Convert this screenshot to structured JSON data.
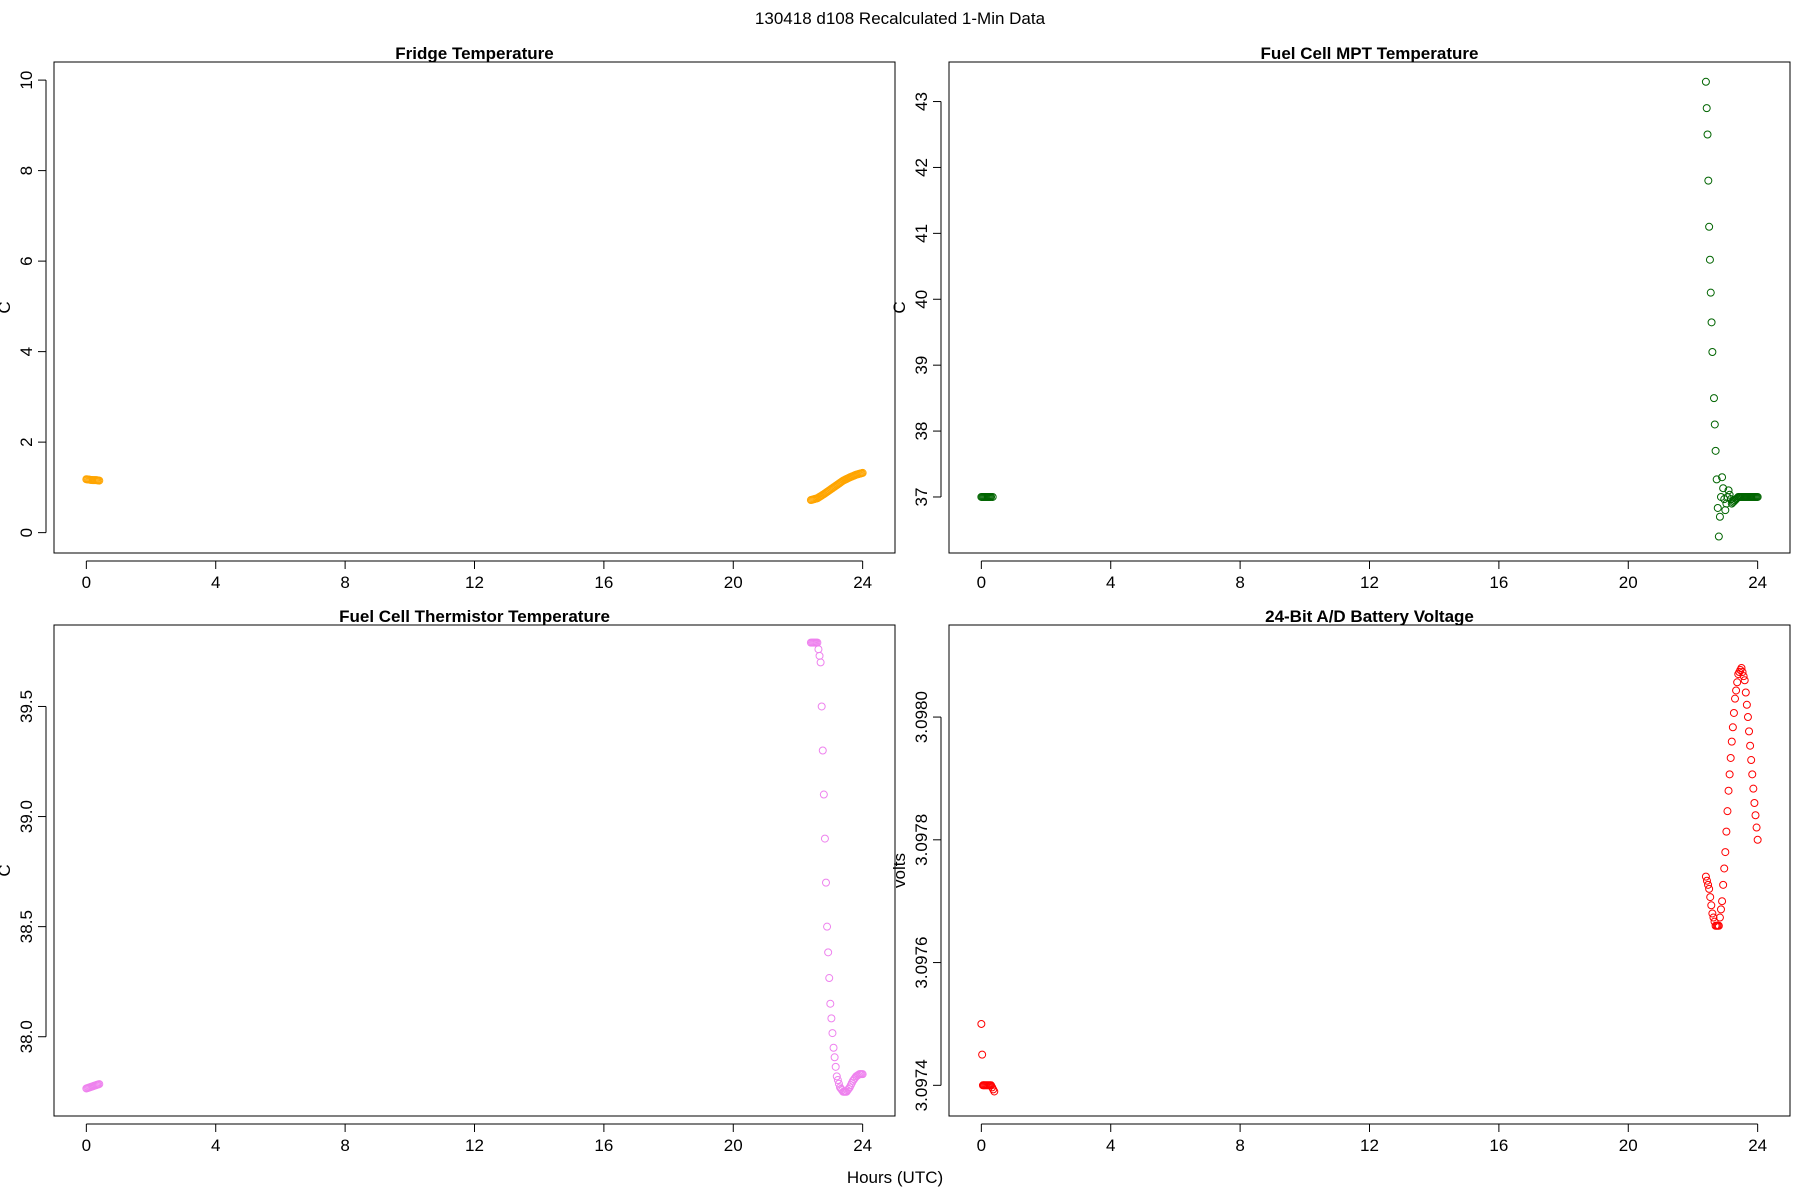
{
  "figure_title": "130418   d108   Recalculated 1-Min Data",
  "shared_xlabel": "Hours (UTC)",
  "chart_data": [
    {
      "type": "scatter",
      "title": "Fridge Temperature",
      "xlabel": "",
      "ylabel": "C",
      "xlim": [
        -1,
        25
      ],
      "ylim": [
        -0.45,
        10.4
      ],
      "xticks": [
        0,
        4,
        8,
        12,
        16,
        20,
        24
      ],
      "xtick_labels": [
        "0",
        "4",
        "8",
        "12",
        "16",
        "20",
        "24"
      ],
      "yticks": [
        0,
        2,
        4,
        6,
        8,
        10
      ],
      "ytick_labels": [
        "0",
        "2",
        "4",
        "6",
        "8",
        "10"
      ],
      "color": "#ffa500",
      "segments": [
        {
          "x": [
            0.0,
            0.1,
            0.2,
            0.3,
            0.4
          ],
          "y": [
            1.18,
            1.17,
            1.16,
            1.16,
            1.15
          ]
        },
        {
          "x": [
            22.4,
            22.6,
            22.8,
            23.0,
            23.2,
            23.4,
            23.6,
            23.8,
            24.0
          ],
          "y": [
            0.72,
            0.76,
            0.85,
            0.95,
            1.05,
            1.15,
            1.22,
            1.28,
            1.32
          ]
        }
      ]
    },
    {
      "type": "scatter",
      "title": "Fuel Cell MPT Temperature",
      "xlabel": "",
      "ylabel": "C",
      "xlim": [
        -1,
        25
      ],
      "ylim": [
        36.15,
        43.6
      ],
      "xticks": [
        0,
        4,
        8,
        12,
        16,
        20,
        24
      ],
      "xtick_labels": [
        "0",
        "4",
        "8",
        "12",
        "16",
        "20",
        "24"
      ],
      "yticks": [
        37,
        38,
        39,
        40,
        41,
        42,
        43
      ],
      "ytick_labels": [
        "37",
        "38",
        "39",
        "40",
        "41",
        "42",
        "43"
      ],
      "color": "#006400",
      "segments": [
        {
          "x": [
            0.0,
            0.1,
            0.2,
            0.3,
            0.35
          ],
          "y": [
            37.0,
            37.0,
            37.0,
            37.0,
            37.0
          ]
        },
        {
          "x": [
            22.4,
            22.45,
            22.5,
            22.55,
            22.6,
            22.65,
            22.7,
            22.8,
            22.9,
            23.0,
            23.1,
            23.2,
            23.4,
            23.6,
            23.8,
            24.0
          ],
          "y": [
            43.3,
            42.5,
            41.1,
            40.1,
            39.2,
            38.5,
            37.7,
            36.4,
            37.3,
            36.8,
            37.1,
            36.9,
            37.0,
            37.0,
            37.0,
            37.0
          ]
        }
      ]
    },
    {
      "type": "scatter",
      "title": "Fuel Cell Thermistor Temperature",
      "xlabel": "",
      "ylabel": "C",
      "xlim": [
        -1,
        25
      ],
      "ylim": [
        37.64,
        39.87
      ],
      "xticks": [
        0,
        4,
        8,
        12,
        16,
        20,
        24
      ],
      "xtick_labels": [
        "0",
        "4",
        "8",
        "12",
        "16",
        "20",
        "24"
      ],
      "yticks": [
        38.0,
        38.5,
        39.0,
        39.5
      ],
      "ytick_labels": [
        "38.0",
        "38.5",
        "39.0",
        "39.5"
      ],
      "color": "#ee82ee",
      "segments": [
        {
          "x": [
            0.0,
            0.1,
            0.2,
            0.3,
            0.4
          ],
          "y": [
            37.765,
            37.77,
            37.775,
            37.78,
            37.785
          ]
        },
        {
          "x": [
            22.4,
            22.5,
            22.6,
            22.7,
            22.8,
            22.9,
            23.0,
            23.1,
            23.2,
            23.3,
            23.4,
            23.5,
            23.6,
            23.7,
            23.8,
            23.9,
            24.0
          ],
          "y": [
            39.79,
            39.79,
            39.79,
            39.7,
            39.1,
            38.5,
            38.15,
            37.95,
            37.82,
            37.77,
            37.75,
            37.75,
            37.77,
            37.8,
            37.82,
            37.83,
            37.83
          ]
        }
      ]
    },
    {
      "type": "scatter",
      "title": "24-Bit A/D Battery Voltage",
      "xlabel": "",
      "ylabel": "volts",
      "xlim": [
        -1,
        25
      ],
      "ylim": [
        3.09735,
        3.09815
      ],
      "xticks": [
        0,
        4,
        8,
        12,
        16,
        20,
        24
      ],
      "xtick_labels": [
        "0",
        "4",
        "8",
        "12",
        "16",
        "20",
        "24"
      ],
      "yticks": [
        3.0974,
        3.0976,
        3.0978,
        3.098
      ],
      "ytick_labels": [
        "3.0974",
        "3.0976",
        "3.0978",
        "3.0980"
      ],
      "color": "#ff0000",
      "segments": [
        {
          "x": [
            0.0,
            0.05,
            0.1,
            0.2,
            0.3,
            0.4
          ],
          "y": [
            3.0975,
            3.0974,
            3.0974,
            3.0974,
            3.0974,
            3.09739
          ]
        },
        {
          "x": [
            22.4,
            22.5,
            22.6,
            22.7,
            22.8,
            22.9,
            23.0,
            23.1,
            23.2,
            23.3,
            23.4,
            23.5,
            23.6,
            23.7,
            23.8,
            23.9,
            24.0
          ],
          "y": [
            3.09774,
            3.09772,
            3.09768,
            3.09766,
            3.09766,
            3.0977,
            3.09778,
            3.09788,
            3.09796,
            3.09803,
            3.09807,
            3.09808,
            3.09806,
            3.098,
            3.09793,
            3.09786,
            3.0978
          ]
        }
      ]
    }
  ]
}
